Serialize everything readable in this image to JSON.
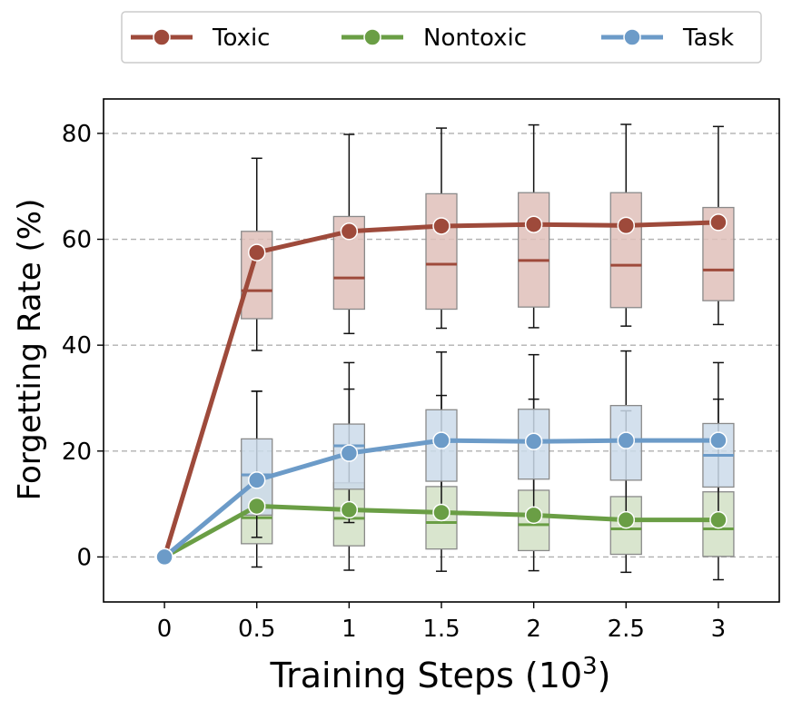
{
  "chart_data": {
    "type": "line",
    "xlabel": "Training Steps (10",
    "xlabel_superscript": "3",
    "xlabel_suffix": ")",
    "ylabel": "Forgetting Rate (%)",
    "x": [
      0,
      0.5,
      1,
      1.5,
      2,
      2.5,
      3
    ],
    "x_tick_labels": [
      "0",
      "0.5",
      "1",
      "1.5",
      "2",
      "2.5",
      "3"
    ],
    "xlim": [
      -0.33,
      3.33
    ],
    "ylim": [
      -8.5,
      86.5
    ],
    "y_ticks": [
      0,
      20,
      40,
      60,
      80
    ],
    "y_tick_labels": [
      "0",
      "20",
      "40",
      "60",
      "80"
    ],
    "grid": "y-dashed",
    "legend_placement": "top-center-outside",
    "series": [
      {
        "name": "Toxic",
        "color": "#9e4a3b",
        "box_fill": "#dfc0ba",
        "values": [
          0,
          57.5,
          61.5,
          62.5,
          62.8,
          62.6,
          63.2
        ],
        "boxes": [
          {
            "x": 0.5,
            "whislo": 39.0,
            "q1": 45.0,
            "med": 50.3,
            "q3": 61.5,
            "whishi": 75.3
          },
          {
            "x": 1,
            "whislo": 42.2,
            "q1": 46.8,
            "med": 52.7,
            "q3": 64.3,
            "whishi": 79.8
          },
          {
            "x": 1.5,
            "whislo": 43.2,
            "q1": 46.8,
            "med": 55.3,
            "q3": 68.6,
            "whishi": 81.0
          },
          {
            "x": 2,
            "whislo": 43.3,
            "q1": 47.2,
            "med": 56.0,
            "q3": 68.8,
            "whishi": 81.6
          },
          {
            "x": 2.5,
            "whislo": 43.6,
            "q1": 47.1,
            "med": 55.1,
            "q3": 68.8,
            "whishi": 81.7
          },
          {
            "x": 3,
            "whislo": 43.9,
            "q1": 48.4,
            "med": 54.2,
            "q3": 66.0,
            "whishi": 81.3
          }
        ]
      },
      {
        "name": "Nontoxic",
        "color": "#6a9e45",
        "box_fill": "#d2e1c5",
        "values": [
          0,
          9.6,
          8.9,
          8.4,
          7.9,
          7.0,
          7.0
        ],
        "boxes": [
          {
            "x": 0.5,
            "whislo": -1.9,
            "q1": 2.5,
            "med": 7.4,
            "q3": 15.2,
            "whishi": 31.3
          },
          {
            "x": 1,
            "whislo": -2.5,
            "q1": 2.1,
            "med": 7.3,
            "q3": 14.0,
            "whishi": 31.7
          },
          {
            "x": 1.5,
            "whislo": -2.7,
            "q1": 1.5,
            "med": 6.5,
            "q3": 13.3,
            "whishi": 30.5
          },
          {
            "x": 2,
            "whislo": -2.6,
            "q1": 1.2,
            "med": 6.1,
            "q3": 12.6,
            "whishi": 29.8
          },
          {
            "x": 2.5,
            "whislo": -2.9,
            "q1": 0.5,
            "med": 5.3,
            "q3": 11.4,
            "whishi": 27.6
          },
          {
            "x": 3,
            "whislo": -4.3,
            "q1": 0.1,
            "med": 5.3,
            "q3": 12.3,
            "whishi": 29.8
          }
        ]
      },
      {
        "name": "Task",
        "color": "#6c9bc8",
        "box_fill": "#cbdaea",
        "values": [
          0,
          14.5,
          19.6,
          22.0,
          21.8,
          22.0,
          22.0
        ],
        "boxes": [
          {
            "x": 0.5,
            "whislo": 3.7,
            "q1": 7.9,
            "med": 15.5,
            "q3": 22.3,
            "whishi": 31.3
          },
          {
            "x": 1,
            "whislo": 6.5,
            "q1": 12.8,
            "med": 21.0,
            "q3": 25.1,
            "whishi": 36.7
          },
          {
            "x": 1.5,
            "whislo": 7.9,
            "q1": 14.3,
            "med": 21.8,
            "q3": 27.8,
            "whishi": 38.7
          },
          {
            "x": 2,
            "whislo": 8.0,
            "q1": 14.7,
            "med": 21.8,
            "q3": 27.9,
            "whishi": 38.2
          },
          {
            "x": 2.5,
            "whislo": 7.8,
            "q1": 14.5,
            "med": 21.9,
            "q3": 28.6,
            "whishi": 38.9
          },
          {
            "x": 3,
            "whislo": 8.1,
            "q1": 13.2,
            "med": 19.2,
            "q3": 25.2,
            "whishi": 36.7
          }
        ]
      }
    ]
  }
}
